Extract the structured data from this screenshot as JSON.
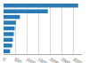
{
  "chart_data": {
    "type": "bar",
    "orientation": "horizontal",
    "categories": [
      null,
      null,
      null,
      null,
      null,
      null,
      null,
      null,
      null
    ],
    "values": [
      3200,
      1900,
      700,
      530,
      480,
      440,
      400,
      370,
      280
    ],
    "color": "#2a7ab5",
    "xlim": [
      0,
      3360
    ],
    "xticks": [
      0,
      500,
      1000,
      1500,
      2000,
      2500,
      3000
    ],
    "grid": true,
    "tick_labels": "x"
  }
}
